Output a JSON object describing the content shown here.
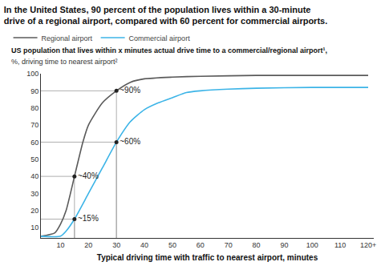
{
  "chart_data": {
    "type": "line",
    "title": "In the United States, 90 percent of the population lives within a 30-minute\ndrive of a regional airport, compared with 60 percent for commercial airports.",
    "subtitle": "US population that lives within x minutes actual drive time to a commercial/regional airport¹,",
    "y_label": "%, driving time to nearest airport²",
    "x_label": "Typical driving time with traffic to nearest airport, minutes",
    "legend": "top-left",
    "grid": false,
    "xlim": [
      3,
      122
    ],
    "xticks": [
      10,
      20,
      30,
      40,
      50,
      60,
      70,
      80,
      90,
      100,
      110,
      {
        "value": 120,
        "label": "120+"
      }
    ],
    "ylim": [
      4,
      100
    ],
    "yticks": [
      10,
      20,
      30,
      40,
      50,
      60,
      70,
      80,
      90,
      100
    ],
    "series": [
      {
        "name": "Regional airport",
        "color": "#5a5a5a",
        "x": [
          3,
          8,
          10,
          12,
          15,
          18,
          20,
          25,
          30,
          35,
          40,
          50,
          60,
          80,
          100,
          120
        ],
        "values": [
          5,
          7,
          12,
          20,
          40,
          60,
          70,
          83,
          90,
          95,
          97,
          98,
          98.5,
          99,
          99,
          99
        ]
      },
      {
        "name": "Commercial airport",
        "color": "#3cb4e7",
        "x": [
          3,
          10,
          12,
          15,
          20,
          25,
          30,
          35,
          40,
          45,
          50,
          55,
          60,
          70,
          80,
          100,
          120
        ],
        "values": [
          5,
          5,
          8,
          15,
          30,
          45,
          60,
          72,
          79,
          83,
          86,
          89,
          90,
          91,
          91.5,
          92,
          92
        ]
      }
    ],
    "annotations": [
      {
        "x": 30,
        "y": 90,
        "text": "~90%"
      },
      {
        "x": 30,
        "y": 60,
        "text": "~60%"
      },
      {
        "x": 15,
        "y": 40,
        "text": "~40%"
      },
      {
        "x": 15,
        "y": 15,
        "text": "~15%"
      }
    ]
  }
}
